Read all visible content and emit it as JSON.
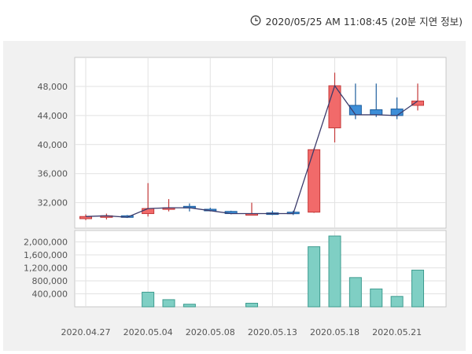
{
  "header": {
    "timestamp": "2020/05/25 AM 11:08:45 (20분 지연 정보)",
    "icon": "clock-icon"
  },
  "colors": {
    "up": "#f16a6a",
    "up_border": "#c43a3a",
    "down": "#3d8ed8",
    "down_border": "#1e5f9e",
    "line": "#3b3b6b",
    "volume": "#7fcfc4",
    "volume_border": "#3f9c90"
  },
  "chart_data": {
    "type": "candlestick",
    "x_tick_labels": [
      "2020.04.27",
      "2020.05.04",
      "2020.05.08",
      "2020.05.13",
      "2020.05.18",
      "2020.05.21"
    ],
    "price_axis": {
      "ticks": [
        32000,
        36000,
        40000,
        44000,
        48000
      ],
      "tick_labels": [
        "32,000",
        "36,000",
        "40,000",
        "44,000",
        "48,000"
      ],
      "range": [
        28500,
        52000
      ]
    },
    "volume_axis": {
      "ticks": [
        400000,
        800000,
        1200000,
        1600000,
        2000000
      ],
      "tick_labels": [
        "400,000",
        "800,000",
        "1,200,000",
        "1,600,000",
        "2,000,000"
      ],
      "range": [
        0,
        2350000
      ]
    },
    "grid": true,
    "candles": [
      {
        "date": "2020.04.27",
        "open": 29800,
        "high": 30400,
        "low": 29600,
        "close": 30100,
        "volume": 0
      },
      {
        "date": "2020.04.28",
        "open": 30100,
        "high": 30500,
        "low": 29700,
        "close": 30200,
        "volume": 0
      },
      {
        "date": "2020.04.29",
        "open": 30200,
        "high": 30300,
        "low": 29900,
        "close": 30000,
        "volume": 0
      },
      {
        "date": "2020.05.04",
        "open": 30500,
        "high": 34700,
        "low": 30100,
        "close": 31200,
        "volume": 450000
      },
      {
        "date": "2020.05.06",
        "open": 31100,
        "high": 32500,
        "low": 30800,
        "close": 31300,
        "volume": 220000
      },
      {
        "date": "2020.05.07",
        "open": 31500,
        "high": 31900,
        "low": 30800,
        "close": 31300,
        "volume": 80000
      },
      {
        "date": "2020.05.08",
        "open": 31100,
        "high": 31300,
        "low": 30800,
        "close": 30900,
        "volume": 0
      },
      {
        "date": "2020.05.11",
        "open": 30800,
        "high": 30900,
        "low": 30400,
        "close": 30500,
        "volume": 0
      },
      {
        "date": "2020.05.12",
        "open": 30400,
        "high": 32000,
        "low": 30300,
        "close": 30500,
        "volume": 110000
      },
      {
        "date": "2020.05.13",
        "open": 30600,
        "high": 30900,
        "low": 30300,
        "close": 30500,
        "volume": 0
      },
      {
        "date": "2020.05.14",
        "open": 30700,
        "high": 30900,
        "low": 30300,
        "close": 30500,
        "volume": 0
      },
      {
        "date": "2020.05.15",
        "open": 30700,
        "high": 39500,
        "low": 30600,
        "close": 39300,
        "volume": 1850000
      },
      {
        "date": "2020.05.18",
        "open": 42300,
        "high": 49900,
        "low": 40300,
        "close": 48100,
        "volume": 2180000
      },
      {
        "date": "2020.05.19",
        "open": 45400,
        "high": 48400,
        "low": 43500,
        "close": 44100,
        "volume": 900000
      },
      {
        "date": "2020.05.20",
        "open": 44800,
        "high": 48400,
        "low": 43800,
        "close": 44100,
        "volume": 550000
      },
      {
        "date": "2020.05.21",
        "open": 44900,
        "high": 46500,
        "low": 43500,
        "close": 44000,
        "volume": 320000
      },
      {
        "date": "2020.05.22",
        "open": 45400,
        "high": 48400,
        "low": 44700,
        "close": 46000,
        "volume": 1130000
      }
    ]
  }
}
